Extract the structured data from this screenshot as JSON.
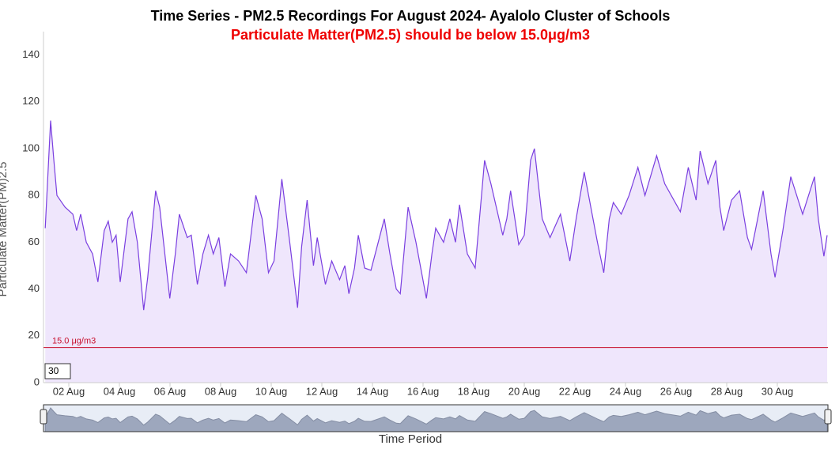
{
  "chart_data": {
    "type": "area",
    "title": "Time Series - PM2.5 Recordings For August 2024- Ayalolo Cluster of Schools",
    "subtitle": "Particulate Matter(PM2.5) should be below 15.0μg/m3",
    "y_label": "Particulate Matter(PM)2.5",
    "x_label": "Time Period",
    "range_input": "30",
    "color": "#7a3fe0",
    "fill": "#efe6fc",
    "threshold": {
      "value": 15,
      "label": "15.0 μg/m3",
      "color": "#c8102e"
    },
    "ylim": [
      0,
      150
    ],
    "yticks": [
      0,
      20,
      40,
      60,
      80,
      100,
      120,
      140
    ],
    "xlim": [
      1,
      32
    ],
    "xticks": [
      {
        "value": 2,
        "label": "02 Aug"
      },
      {
        "value": 4,
        "label": "04 Aug"
      },
      {
        "value": 6,
        "label": "06 Aug"
      },
      {
        "value": 8,
        "label": "08 Aug"
      },
      {
        "value": 10,
        "label": "10 Aug"
      },
      {
        "value": 12,
        "label": "12 Aug"
      },
      {
        "value": 14,
        "label": "14 Aug"
      },
      {
        "value": 16,
        "label": "16 Aug"
      },
      {
        "value": 18,
        "label": "18 Aug"
      },
      {
        "value": 20,
        "label": "20 Aug"
      },
      {
        "value": 22,
        "label": "22 Aug"
      },
      {
        "value": 24,
        "label": "24 Aug"
      },
      {
        "value": 26,
        "label": "26 Aug"
      },
      {
        "value": 28,
        "label": "28 Aug"
      },
      {
        "value": 30,
        "label": "30 Aug"
      }
    ],
    "x": [
      1.07,
      1.28,
      1.41,
      1.53,
      1.85,
      2.16,
      2.31,
      2.47,
      2.69,
      2.94,
      3.15,
      3.4,
      3.56,
      3.72,
      3.87,
      4.03,
      4.34,
      4.5,
      4.71,
      4.96,
      5.12,
      5.43,
      5.59,
      5.99,
      6.21,
      6.37,
      6.68,
      6.84,
      7.08,
      7.3,
      7.52,
      7.71,
      7.93,
      8.17,
      8.39,
      8.71,
      9.02,
      9.39,
      9.64,
      9.89,
      10.11,
      10.42,
      10.73,
      11.04,
      11.2,
      11.42,
      11.67,
      11.82,
      12.14,
      12.39,
      12.7,
      12.91,
      13.07,
      13.29,
      13.44,
      13.69,
      13.94,
      14.47,
      14.69,
      14.94,
      15.1,
      15.41,
      15.72,
      16.13,
      16.35,
      16.5,
      16.81,
      17.06,
      17.28,
      17.44,
      17.75,
      18.06,
      18.43,
      18.68,
      19.15,
      19.31,
      19.46,
      19.78,
      20.0,
      20.25,
      20.4,
      20.71,
      21.02,
      21.43,
      21.8,
      22.05,
      22.37,
      22.68,
      22.89,
      23.14,
      23.36,
      23.52,
      23.83,
      24.14,
      24.49,
      24.77,
      25.23,
      25.55,
      26.17,
      26.48,
      26.79,
      26.95,
      27.26,
      27.57,
      27.73,
      27.88,
      28.19,
      28.51,
      28.82,
      28.98,
      29.13,
      29.44,
      29.75,
      29.91,
      30.22,
      30.53,
      31.0,
      31.47,
      31.62,
      31.84,
      31.97
    ],
    "values": [
      66,
      112,
      95,
      80,
      75,
      72,
      65,
      72,
      60,
      55,
      43,
      65,
      69,
      60,
      63,
      43,
      70,
      73,
      60,
      31,
      45,
      82,
      75,
      36,
      55,
      72,
      62,
      63,
      42,
      55,
      63,
      55,
      62,
      41,
      55,
      52,
      47,
      80,
      70,
      47,
      52,
      87,
      60,
      32,
      58,
      78,
      50,
      62,
      42,
      52,
      44,
      50,
      38,
      49,
      63,
      49,
      48,
      70,
      55,
      40,
      38,
      75,
      60,
      36,
      55,
      66,
      60,
      70,
      60,
      76,
      55,
      49,
      95,
      85,
      63,
      70,
      82,
      59,
      63,
      95,
      100,
      70,
      62,
      72,
      52,
      70,
      90,
      72,
      60,
      47,
      70,
      77,
      72,
      80,
      92,
      80,
      97,
      85,
      73,
      92,
      78,
      99,
      85,
      95,
      75,
      65,
      78,
      82,
      62,
      57,
      65,
      82,
      55,
      45,
      65,
      88,
      72,
      88,
      70,
      54,
      63
    ]
  }
}
